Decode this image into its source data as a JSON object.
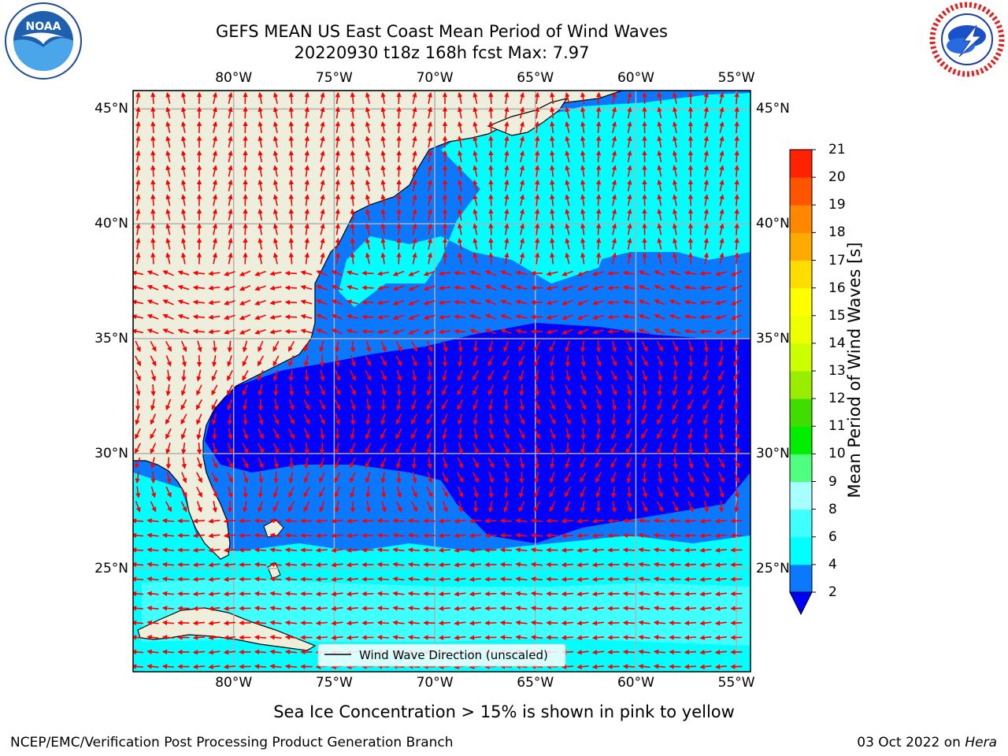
{
  "header": {
    "title_line1": "GEFS MEAN US East Coast Mean Period of Wind Waves",
    "title_line2": "20220930 t18z 168h fcst   Max: 7.97"
  },
  "logos": {
    "left": {
      "text": "NOAA",
      "ring_text": "NATIONAL OCEANIC AND ATMOSPHERIC ADMINISTRATION · U.S. DEPARTMENT OF COMMERCE",
      "icon": "noaa-logo"
    },
    "right": {
      "ring_text": "NATIONAL WEATHER SERVICE",
      "icon": "nws-logo"
    }
  },
  "map": {
    "lon_labels": [
      "80°W",
      "75°W",
      "70°W",
      "65°W",
      "60°W",
      "55°W"
    ],
    "lat_labels": [
      "45°N",
      "40°N",
      "35°N",
      "30°N",
      "25°N"
    ],
    "lon_values": [
      -80,
      -75,
      -70,
      -65,
      -60,
      -55
    ],
    "lat_values": [
      45,
      40,
      35,
      30,
      25
    ],
    "extent": {
      "lon": [
        -85,
        -54.3
      ],
      "lat": [
        20.5,
        45.8
      ]
    },
    "legend_label": "Wind Wave Direction (unscaled)",
    "arrow_color": "#ff0000",
    "land_color": "#eeeedd",
    "gridline_color": "#b0b0b0"
  },
  "colorbar": {
    "label": "Mean Period of Wind Waves [s]",
    "ticks": [
      "2",
      "4",
      "6",
      "8",
      "9",
      "10",
      "11",
      "12",
      "13",
      "14",
      "15",
      "16",
      "17",
      "18",
      "19",
      "20",
      "21"
    ],
    "colors": [
      "#0a78ff",
      "#00ffff",
      "#40ffff",
      "#80ffff",
      "#a8ffff",
      "#50ff80",
      "#00ee00",
      "#40dd00",
      "#99ee00",
      "#ccff00",
      "#eeff00",
      "#ffff00",
      "#ffdd00",
      "#ffaa00",
      "#ff8800",
      "#ff5500",
      "#ff2200",
      "#ff0000"
    ],
    "under_color": "#0000ff"
  },
  "footer": {
    "note": "Sea Ice Concentration > 15% is shown in pink to yellow",
    "left": "NCEP/EMC/Verification Post Processing Product Generation Branch",
    "right_prefix": "03 Oct 2022 on ",
    "right_host": "Hera"
  }
}
